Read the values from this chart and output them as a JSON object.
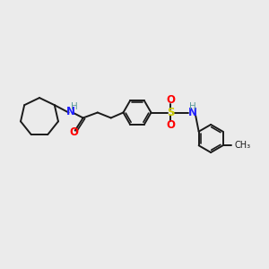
{
  "bg_color": "#ebebeb",
  "bond_color": "#1a1a1a",
  "N_color": "#2020ff",
  "O_color": "#ff0000",
  "S_color": "#cccc00",
  "H_color": "#5a9a9a",
  "lw": 1.4,
  "fig_size": [
    3.0,
    3.0
  ],
  "xlim": [
    0,
    10
  ],
  "ylim": [
    0,
    10
  ]
}
